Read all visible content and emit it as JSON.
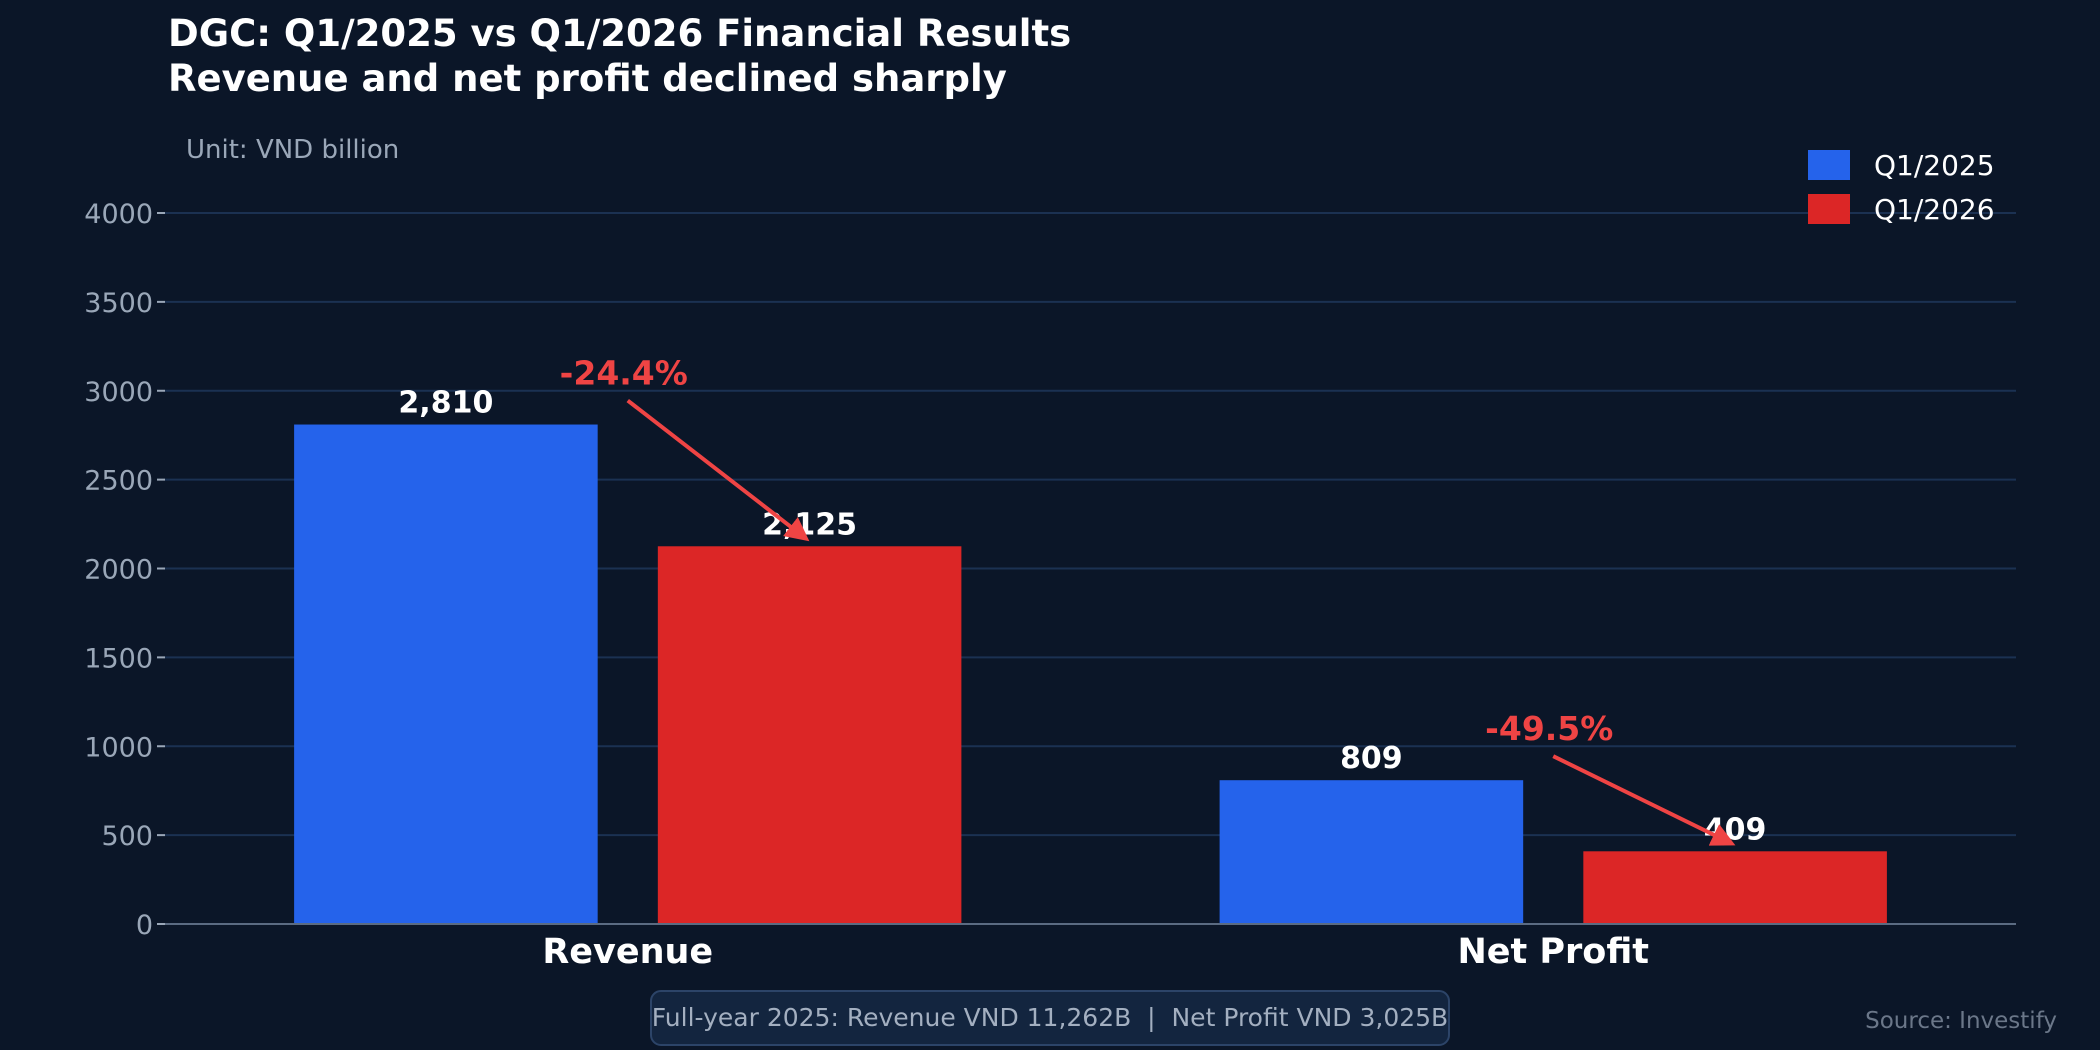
{
  "chart_data": {
    "type": "bar",
    "title": "DGC: Q1/2025 vs Q1/2026 Financial Results",
    "subtitle": "Revenue and net profit declined sharply",
    "unit_label": "Unit: VND billion",
    "categories": [
      "Revenue",
      "Net Profit"
    ],
    "series": [
      {
        "name": "Q1/2025",
        "values": [
          2810,
          809
        ],
        "labels": [
          "2,810",
          "809"
        ],
        "color": "#2563eb"
      },
      {
        "name": "Q1/2026",
        "values": [
          2125,
          409
        ],
        "labels": [
          "2,125",
          "409"
        ],
        "color": "#dc2626"
      }
    ],
    "changes": [
      "-24.4%",
      "-49.5%"
    ],
    "change_color": "#ef4444",
    "ylim": [
      0,
      4000
    ],
    "yticks": [
      0,
      500,
      1000,
      1500,
      2000,
      2500,
      3000,
      3500,
      4000
    ],
    "grid": true,
    "legend_position": "top-right",
    "note": "Full-year 2025: Revenue VND 11,262B  |  Net Profit VND 3,025B",
    "source": "Source: Investify"
  }
}
